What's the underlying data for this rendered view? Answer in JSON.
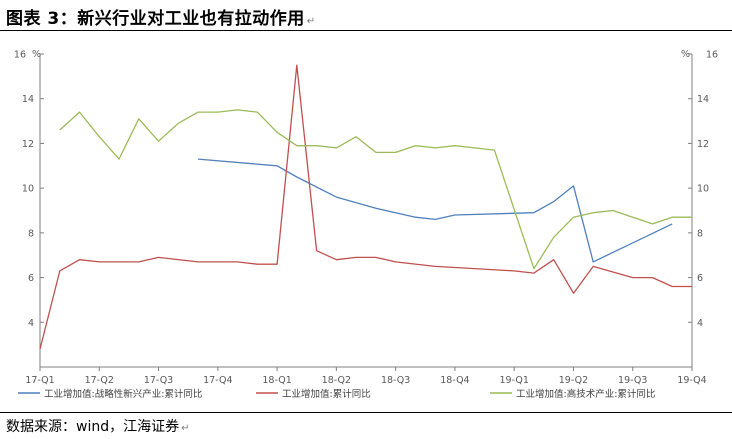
{
  "figure": {
    "title": "图表 3：新兴行业对工业也有拉动作用",
    "return_mark": "↵",
    "source": "数据来源：wind，江海证券"
  },
  "colors": {
    "series_blue": "#4F81BD",
    "series_red": "#C0504D",
    "series_green": "#9BBB59",
    "axis": "#808080"
  },
  "chart_data": {
    "type": "line",
    "x_ticks": [
      "17-Q1",
      "17-Q2",
      "17-Q3",
      "17-Q4",
      "18-Q1",
      "18-Q2",
      "18-Q3",
      "18-Q4",
      "19-Q1",
      "19-Q2",
      "19-Q3",
      "19-Q4"
    ],
    "x_range": [
      0,
      33
    ],
    "y_left": {
      "unit": "%",
      "range": [
        2,
        16
      ],
      "ticks": [
        4,
        6,
        8,
        10,
        12,
        14,
        16
      ]
    },
    "y_right": {
      "unit": "%",
      "range": [
        2,
        16
      ],
      "ticks": [
        4,
        6,
        8,
        10,
        12,
        14,
        16
      ]
    },
    "grid": false,
    "legend_position": "bottom",
    "series": [
      {
        "name": "工业增加值:战略性新兴产业:累计同比",
        "color": "#4F81BD",
        "points": [
          [
            8,
            11.3
          ],
          [
            12,
            11.0
          ],
          [
            13,
            10.5
          ],
          [
            15,
            9.6
          ],
          [
            17,
            9.1
          ],
          [
            19,
            8.7
          ],
          [
            20,
            8.6
          ],
          [
            21,
            8.8
          ],
          [
            25,
            8.9
          ],
          [
            26,
            9.4
          ],
          [
            27,
            10.1
          ],
          [
            28,
            6.7
          ],
          [
            32,
            8.4
          ]
        ]
      },
      {
        "name": "工业增加值:累计同比",
        "color": "#C0504D",
        "points": [
          [
            0,
            2.8
          ],
          [
            1,
            6.3
          ],
          [
            2,
            6.8
          ],
          [
            3,
            6.7
          ],
          [
            5,
            6.7
          ],
          [
            6,
            6.9
          ],
          [
            8,
            6.7
          ],
          [
            10,
            6.7
          ],
          [
            11,
            6.6
          ],
          [
            12,
            6.6
          ],
          [
            13,
            15.5
          ],
          [
            14,
            7.2
          ],
          [
            15,
            6.8
          ],
          [
            16,
            6.9
          ],
          [
            17,
            6.9
          ],
          [
            18,
            6.7
          ],
          [
            20,
            6.5
          ],
          [
            22,
            6.4
          ],
          [
            24,
            6.3
          ],
          [
            25,
            6.2
          ],
          [
            26,
            6.8
          ],
          [
            27,
            5.3
          ],
          [
            28,
            6.5
          ],
          [
            30,
            6.0
          ],
          [
            31,
            6.0
          ],
          [
            32,
            5.6
          ],
          [
            33,
            5.6
          ]
        ]
      },
      {
        "name": "工业增加值:高技术产业:累计同比",
        "color": "#9BBB59",
        "points": [
          [
            1,
            12.6
          ],
          [
            2,
            13.4
          ],
          [
            3,
            12.3
          ],
          [
            4,
            11.3
          ],
          [
            5,
            13.1
          ],
          [
            6,
            12.1
          ],
          [
            7,
            12.9
          ],
          [
            8,
            13.4
          ],
          [
            9,
            13.4
          ],
          [
            10,
            13.5
          ],
          [
            11,
            13.4
          ],
          [
            12,
            12.5
          ],
          [
            13,
            11.9
          ],
          [
            14,
            11.9
          ],
          [
            15,
            11.8
          ],
          [
            16,
            12.3
          ],
          [
            17,
            11.6
          ],
          [
            18,
            11.6
          ],
          [
            19,
            11.9
          ],
          [
            20,
            11.8
          ],
          [
            21,
            11.9
          ],
          [
            22,
            11.8
          ],
          [
            23,
            11.7
          ],
          [
            25,
            6.4
          ],
          [
            26,
            7.8
          ],
          [
            27,
            8.7
          ],
          [
            28,
            8.9
          ],
          [
            29,
            9.0
          ],
          [
            30,
            8.7
          ],
          [
            31,
            8.4
          ],
          [
            32,
            8.7
          ],
          [
            33,
            8.7
          ]
        ]
      }
    ]
  }
}
